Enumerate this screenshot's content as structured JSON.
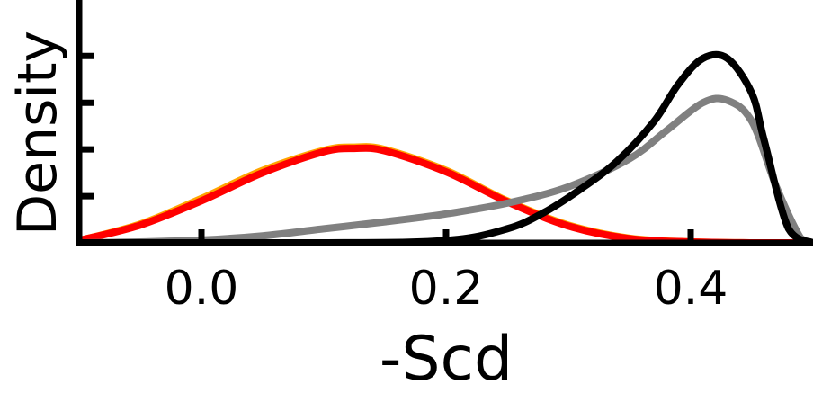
{
  "chart_data": {
    "type": "line",
    "title": "",
    "xlabel": "-Scd",
    "ylabel": "Density",
    "xlim": [
      -0.1,
      0.5
    ],
    "ylim": [
      0,
      5.2
    ],
    "xticks": [
      0.0,
      0.2,
      0.4
    ],
    "xtick_labels": [
      "0.0",
      "0.2",
      "0.4"
    ],
    "yticks": [
      0,
      1,
      2,
      3,
      4
    ],
    "grid": false,
    "legend": "none",
    "series": [
      {
        "name": "orange",
        "color": "#FFA500",
        "x": [
          -0.1,
          -0.05,
          0.0,
          0.05,
          0.1,
          0.125,
          0.15,
          0.2,
          0.25,
          0.3,
          0.35,
          0.4,
          0.45,
          0.5
        ],
        "y": [
          0.05,
          0.4,
          0.95,
          1.55,
          1.98,
          2.05,
          2.0,
          1.55,
          0.9,
          0.38,
          0.1,
          0.02,
          0.0,
          0.0
        ]
      },
      {
        "name": "red",
        "color": "#FF0000",
        "x": [
          -0.1,
          -0.05,
          0.0,
          0.05,
          0.1,
          0.125,
          0.15,
          0.2,
          0.25,
          0.3,
          0.35,
          0.4,
          0.45,
          0.5
        ],
        "y": [
          0.05,
          0.38,
          0.9,
          1.5,
          1.95,
          2.02,
          1.97,
          1.52,
          0.88,
          0.36,
          0.09,
          0.02,
          0.0,
          0.0
        ]
      },
      {
        "name": "gray",
        "color": "#808080",
        "x": [
          -0.1,
          -0.05,
          0.0,
          0.05,
          0.1,
          0.15,
          0.2,
          0.25,
          0.3,
          0.35,
          0.38,
          0.41,
          0.43,
          0.45,
          0.47,
          0.49,
          0.5
        ],
        "y": [
          0.0,
          0.02,
          0.06,
          0.15,
          0.3,
          0.45,
          0.62,
          0.85,
          1.2,
          1.8,
          2.4,
          3.0,
          3.05,
          2.6,
          1.2,
          0.1,
          0.0
        ]
      },
      {
        "name": "black",
        "color": "#000000",
        "x": [
          -0.1,
          0.1,
          0.2,
          0.25,
          0.28,
          0.31,
          0.34,
          0.37,
          0.39,
          0.41,
          0.43,
          0.45,
          0.46,
          0.48,
          0.5
        ],
        "y": [
          0.0,
          0.0,
          0.05,
          0.3,
          0.65,
          1.15,
          1.75,
          2.6,
          3.4,
          3.95,
          3.95,
          3.2,
          2.2,
          0.3,
          0.0
        ]
      }
    ]
  }
}
